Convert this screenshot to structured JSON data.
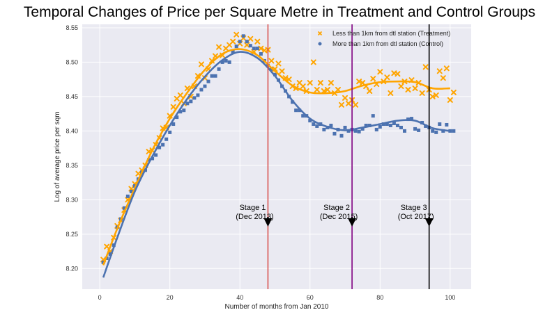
{
  "chart_data": {
    "type": "scatter",
    "title": "Temporal Changes of Price per Square Metre in Treatment and Control Groups",
    "xlabel": "Number of months from Jan 2010",
    "ylabel": "Log of average price per sqm",
    "xlim": [
      -5,
      106
    ],
    "ylim": [
      8.17,
      8.555
    ],
    "xticks": [
      0,
      20,
      40,
      60,
      80,
      100
    ],
    "yticks": [
      8.2,
      8.25,
      8.3,
      8.35,
      8.4,
      8.45,
      8.5,
      8.55
    ],
    "grid": true,
    "legend_position": "top-right",
    "colors": {
      "background": "#eaeaf2",
      "grid": "#ffffff",
      "treatment": "#ffa500",
      "control": "#4c72b0"
    },
    "series": [
      {
        "name": "Less than 1km from dtl station (Treatment)",
        "marker": "x",
        "color": "#ffa500",
        "x": [
          1,
          2,
          3,
          4,
          5,
          6,
          7,
          8,
          9,
          10,
          11,
          12,
          13,
          14,
          15,
          16,
          17,
          18,
          19,
          20,
          21,
          22,
          23,
          24,
          25,
          26,
          27,
          28,
          29,
          30,
          31,
          32,
          33,
          34,
          35,
          36,
          37,
          38,
          39,
          40,
          41,
          42,
          43,
          44,
          45,
          46,
          47,
          48,
          49,
          50,
          51,
          52,
          53,
          54,
          55,
          56,
          57,
          58,
          59,
          60,
          61,
          62,
          63,
          64,
          65,
          66,
          67,
          68,
          69,
          70,
          71,
          72,
          73,
          74,
          75,
          76,
          77,
          78,
          79,
          80,
          81,
          82,
          83,
          84,
          85,
          86,
          87,
          88,
          89,
          90,
          91,
          92,
          93,
          94,
          95,
          96,
          97,
          98,
          99,
          100,
          101
        ],
        "y": [
          8.213,
          8.232,
          8.225,
          8.245,
          8.262,
          8.27,
          8.285,
          8.3,
          8.316,
          8.323,
          8.338,
          8.343,
          8.35,
          8.37,
          8.372,
          8.38,
          8.39,
          8.404,
          8.405,
          8.422,
          8.435,
          8.447,
          8.452,
          8.44,
          8.462,
          8.45,
          8.465,
          8.48,
          8.497,
          8.477,
          8.49,
          8.502,
          8.509,
          8.522,
          8.51,
          8.52,
          8.525,
          8.53,
          8.54,
          8.527,
          8.535,
          8.525,
          8.534,
          8.515,
          8.53,
          8.52,
          8.517,
          8.518,
          8.502,
          8.49,
          8.498,
          8.487,
          8.477,
          8.475,
          8.465,
          8.462,
          8.47,
          8.465,
          8.458,
          8.47,
          8.5,
          8.46,
          8.47,
          8.458,
          8.46,
          8.47,
          8.455,
          8.46,
          8.438,
          8.448,
          8.44,
          8.445,
          8.438,
          8.472,
          8.47,
          8.465,
          8.458,
          8.476,
          8.468,
          8.486,
          8.472,
          8.478,
          8.455,
          8.484,
          8.483,
          8.465,
          8.472,
          8.46,
          8.474,
          8.462,
          8.47,
          8.455,
          8.493,
          8.46,
          8.45,
          8.452,
          8.487,
          8.477,
          8.491,
          8.445,
          8.456
        ]
      },
      {
        "name": "More than 1km from dtl station (Control)",
        "marker": "s",
        "color": "#4c72b0",
        "x": [
          1,
          2,
          3,
          4,
          5,
          6,
          7,
          8,
          9,
          10,
          11,
          12,
          13,
          14,
          15,
          16,
          17,
          18,
          19,
          20,
          21,
          22,
          23,
          24,
          25,
          26,
          27,
          28,
          29,
          30,
          31,
          32,
          33,
          34,
          35,
          36,
          37,
          38,
          39,
          40,
          41,
          42,
          43,
          44,
          45,
          46,
          47,
          48,
          49,
          50,
          51,
          52,
          53,
          54,
          55,
          56,
          57,
          58,
          59,
          60,
          61,
          62,
          63,
          64,
          65,
          66,
          67,
          68,
          69,
          70,
          71,
          72,
          73,
          74,
          75,
          76,
          77,
          78,
          79,
          80,
          81,
          82,
          83,
          84,
          85,
          86,
          87,
          88,
          89,
          90,
          91,
          92,
          93,
          94,
          95,
          96,
          97,
          98,
          99,
          100,
          101
        ],
        "y": [
          8.209,
          8.215,
          8.221,
          8.234,
          8.26,
          8.272,
          8.288,
          8.305,
          8.312,
          8.32,
          8.33,
          8.34,
          8.343,
          8.358,
          8.36,
          8.365,
          8.376,
          8.38,
          8.388,
          8.398,
          8.41,
          8.42,
          8.428,
          8.43,
          8.44,
          8.443,
          8.448,
          8.452,
          8.46,
          8.465,
          8.472,
          8.48,
          8.48,
          8.49,
          8.5,
          8.502,
          8.5,
          8.515,
          8.523,
          8.53,
          8.538,
          8.53,
          8.524,
          8.52,
          8.52,
          8.512,
          8.502,
          8.495,
          8.49,
          8.482,
          8.474,
          8.465,
          8.458,
          8.45,
          8.442,
          8.43,
          8.43,
          8.422,
          8.422,
          8.415,
          8.41,
          8.407,
          8.41,
          8.402,
          8.405,
          8.408,
          8.396,
          8.402,
          8.393,
          8.405,
          8.4,
          8.402,
          8.4,
          8.399,
          8.403,
          8.408,
          8.408,
          8.422,
          8.402,
          8.406,
          8.41,
          8.41,
          8.408,
          8.411,
          8.408,
          8.405,
          8.4,
          8.417,
          8.418,
          8.403,
          8.401,
          8.412,
          8.407,
          8.405,
          8.4,
          8.398,
          8.41,
          8.4,
          8.409,
          8.4,
          8.4
        ]
      }
    ],
    "trend_lines": [
      {
        "series": "Less than 1km from dtl station (Treatment)",
        "color": "#ffa500",
        "x": [
          1,
          5,
          10,
          15,
          20,
          25,
          30,
          35,
          40,
          45,
          50,
          55,
          60,
          65,
          70,
          75,
          80,
          85,
          90,
          95,
          100
        ],
        "y": [
          8.205,
          8.258,
          8.317,
          8.372,
          8.418,
          8.456,
          8.489,
          8.512,
          8.519,
          8.51,
          8.487,
          8.466,
          8.456,
          8.455,
          8.458,
          8.466,
          8.471,
          8.472,
          8.471,
          8.462,
          8.462
        ]
      },
      {
        "series": "More than 1km from dtl station (Control)",
        "color": "#4c72b0",
        "x": [
          1,
          5,
          10,
          15,
          20,
          25,
          30,
          35,
          40,
          45,
          50,
          55,
          60,
          65,
          70,
          75,
          80,
          85,
          90,
          95,
          100
        ],
        "y": [
          8.187,
          8.245,
          8.312,
          8.363,
          8.408,
          8.447,
          8.479,
          8.503,
          8.515,
          8.506,
          8.48,
          8.444,
          8.418,
          8.406,
          8.401,
          8.405,
          8.41,
          8.415,
          8.415,
          8.404,
          8.4
        ]
      }
    ],
    "vertical_lines": [
      {
        "x": 48,
        "color": "#d9534f",
        "label_line1": "Stage 1",
        "label_line2": "(Dec 2013)"
      },
      {
        "x": 72,
        "color": "#800080",
        "label_line1": "Stage 2",
        "label_line2": "(Dec 2015)"
      },
      {
        "x": 94,
        "color": "#000000",
        "label_line1": "Stage 3",
        "label_line2": "(Oct 2017)"
      }
    ]
  }
}
